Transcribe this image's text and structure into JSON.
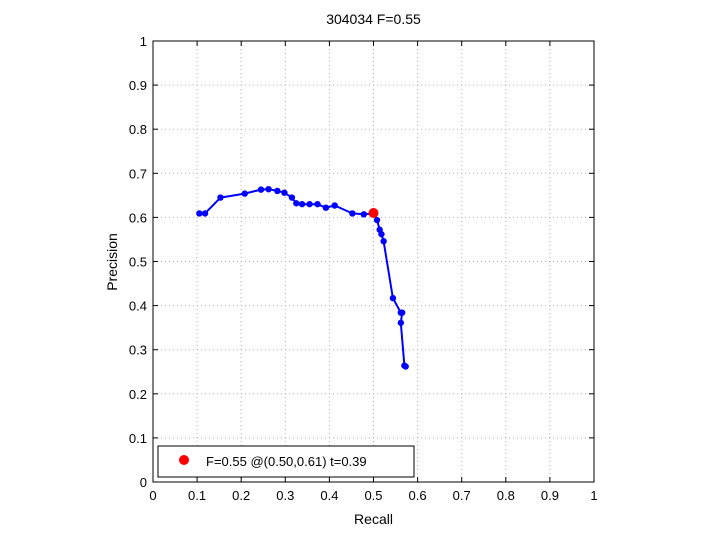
{
  "chart_data": {
    "type": "line",
    "title": "304034 F=0.55",
    "xlabel": "Recall",
    "ylabel": "Precision",
    "xlim": [
      0,
      1
    ],
    "ylim": [
      0,
      1
    ],
    "xticks": [
      "0",
      "0.1",
      "0.2",
      "0.3",
      "0.4",
      "0.5",
      "0.6",
      "0.7",
      "0.8",
      "0.9",
      "1"
    ],
    "yticks": [
      "0",
      "0.1",
      "0.2",
      "0.3",
      "0.4",
      "0.5",
      "0.6",
      "0.7",
      "0.8",
      "0.9",
      "1"
    ],
    "grid": true,
    "series": [
      {
        "color": "#0000ff",
        "marker": "dot",
        "points": [
          [
            0.105,
            0.609
          ],
          [
            0.118,
            0.609
          ],
          [
            0.153,
            0.645
          ],
          [
            0.208,
            0.654
          ],
          [
            0.245,
            0.663
          ],
          [
            0.262,
            0.664
          ],
          [
            0.282,
            0.66
          ],
          [
            0.298,
            0.656
          ],
          [
            0.315,
            0.645
          ],
          [
            0.325,
            0.632
          ],
          [
            0.338,
            0.63
          ],
          [
            0.355,
            0.63
          ],
          [
            0.373,
            0.63
          ],
          [
            0.392,
            0.622
          ],
          [
            0.412,
            0.627
          ],
          [
            0.452,
            0.609
          ],
          [
            0.478,
            0.607
          ],
          [
            0.502,
            0.609
          ],
          [
            0.508,
            0.594
          ],
          [
            0.514,
            0.572
          ],
          [
            0.518,
            0.562
          ],
          [
            0.523,
            0.546
          ],
          [
            0.544,
            0.417
          ],
          [
            0.562,
            0.384
          ],
          [
            0.565,
            0.384
          ],
          [
            0.562,
            0.361
          ],
          [
            0.57,
            0.264
          ],
          [
            0.573,
            0.262
          ]
        ]
      }
    ],
    "highlight": {
      "x": 0.5,
      "y": 0.61,
      "color": "#ff0000"
    },
    "legend": {
      "position": "bottom-left",
      "label": "F=0.55 @(0.50,0.61) t=0.39"
    }
  }
}
